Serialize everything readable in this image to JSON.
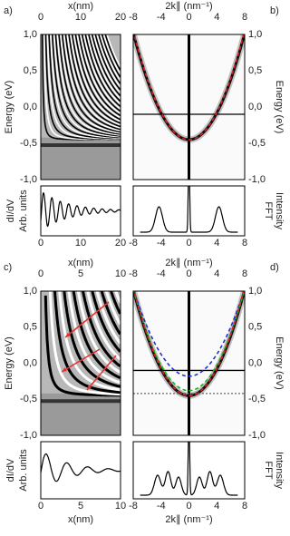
{
  "panels": [
    {
      "label": "a)",
      "top_axis_label": "x(nm)",
      "top_ticks": [
        "0",
        "10",
        "20"
      ],
      "y_label": "Energy (eV)",
      "y_ticks": [
        "1,0",
        "0,5",
        "0,0",
        "-0,5",
        "-1,0"
      ],
      "lower_label_1": "dI/dV",
      "lower_label_2": "Arb. units",
      "lower_ticks": [
        "0",
        "10",
        "20"
      ]
    },
    {
      "label": "b)",
      "top_axis_label": "2k∥ (nm⁻¹)",
      "top_ticks": [
        "-8",
        "-4",
        "0",
        "4",
        "8"
      ],
      "y_label": "Energy (eV)",
      "y_ticks": [
        "1,0",
        "0,5",
        "0,0",
        "-0,5",
        "-1,0"
      ],
      "lower_label_1": "FFT",
      "lower_label_2": "Intensity",
      "lower_ticks": [
        "-8",
        "-4",
        "0",
        "4",
        "8"
      ]
    },
    {
      "label": "c)",
      "top_axis_label": "x(nm)",
      "top_ticks": [
        "0",
        "5",
        "10"
      ],
      "y_label": "Energy (eV)",
      "y_ticks": [
        "1,0",
        "0,5",
        "0,0",
        "-0,5",
        "-1,0"
      ],
      "lower_label_1": "dI/dV",
      "lower_label_2": "Arb. units",
      "lower_ticks": [
        "0",
        "5",
        "10"
      ],
      "bottom_axis_label": "x(nm)"
    },
    {
      "label": "d)",
      "top_axis_label": "2k∥ (nm⁻¹)",
      "top_ticks": [
        "-8",
        "-4",
        "0",
        "4",
        "8"
      ],
      "y_label": "Energy (eV)",
      "y_ticks": [
        "1,0",
        "0,5",
        "0,0",
        "-0,5",
        "-1,0"
      ],
      "lower_label_1": "FFT",
      "lower_label_2": "Intensity",
      "lower_ticks": [
        "-8",
        "-4",
        "0",
        "4",
        "8"
      ],
      "bottom_axis_label": "2k∥ (nm⁻¹)"
    }
  ]
}
